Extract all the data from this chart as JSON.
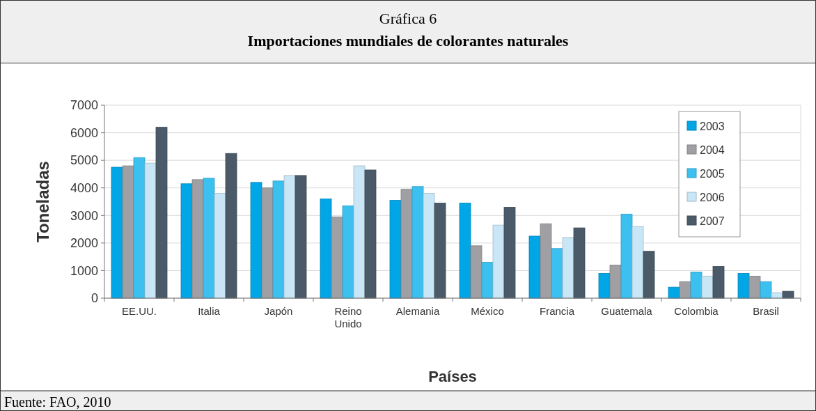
{
  "chart_data": {
    "type": "bar",
    "title": "Gráfica 6",
    "subtitle": "Importaciones mundiales de colorantes naturales",
    "xlabel": "Países",
    "ylabel": "Toneladas",
    "annotations": [
      "Fuente: FAO, 2010"
    ],
    "categories": [
      "EE.UU.",
      "Italia",
      "Japón",
      "Reino Unido",
      "Alemania",
      "México",
      "Francia",
      "Guatemala",
      "Colombia",
      "Brasil"
    ],
    "series": [
      {
        "name": "2003",
        "color": "#00a6e6",
        "values": [
          4750,
          4150,
          4200,
          3600,
          3550,
          3450,
          2250,
          900,
          400,
          900
        ]
      },
      {
        "name": "2004",
        "color": "#a0a0a4",
        "values": [
          4800,
          4300,
          4000,
          2950,
          3950,
          1900,
          2700,
          1200,
          600,
          800
        ]
      },
      {
        "name": "2005",
        "color": "#3cc0ef",
        "values": [
          5100,
          4350,
          4250,
          3350,
          4050,
          1300,
          1800,
          3050,
          950,
          600
        ]
      },
      {
        "name": "2006",
        "color": "#c8e6f6",
        "values": [
          4900,
          3800,
          4450,
          4800,
          3800,
          2650,
          2200,
          2600,
          800,
          200
        ]
      },
      {
        "name": "2007",
        "color": "#4a5a68",
        "values": [
          6200,
          5250,
          4450,
          4650,
          3450,
          3300,
          2550,
          1700,
          1150,
          250
        ]
      }
    ],
    "ylim": [
      0,
      7000
    ],
    "yticks": [
      0,
      1000,
      2000,
      3000,
      4000,
      5000,
      6000,
      7000
    ],
    "grid": "y",
    "legend": "top right"
  }
}
